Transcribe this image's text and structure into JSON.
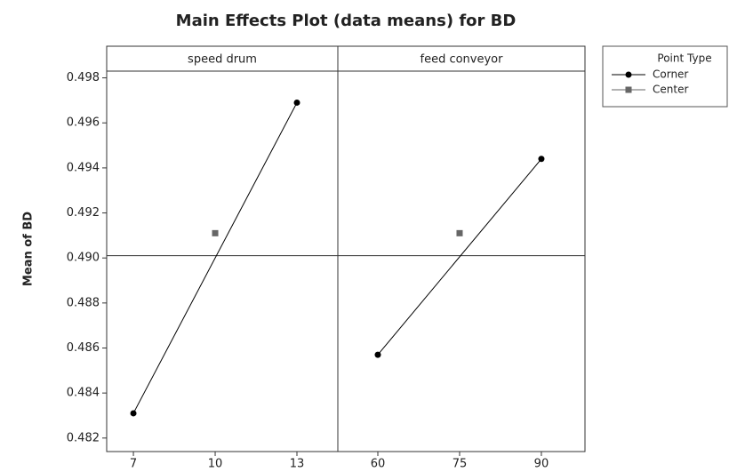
{
  "chart_data": {
    "type": "line",
    "title": "Main Effects Plot (data means) for BD",
    "ylabel": "Mean of BD",
    "ylim": [
      0.4814,
      0.4983
    ],
    "yticks": [
      0.482,
      0.484,
      0.486,
      0.488,
      {
        "value": 0.49,
        "label": "0.490"
      },
      0.492,
      0.494,
      0.496,
      0.498
    ],
    "reference_line": 0.4901,
    "legend_title": "Point Type",
    "legend_position": "upper right outside",
    "panels": [
      {
        "title": "speed drum",
        "xlim": [
          6.02,
          14.5
        ],
        "xticks": [
          7,
          10,
          13
        ],
        "series": [
          {
            "name": "Corner",
            "color": "#000000",
            "marker": "circle",
            "x": [
              7,
              13
            ],
            "values": [
              0.4831,
              0.4969
            ]
          },
          {
            "name": "Center",
            "color": "#666666",
            "marker": "square",
            "x": [
              10
            ],
            "values": [
              0.4911
            ]
          }
        ]
      },
      {
        "title": "feed conveyor",
        "xlim": [
          52.66,
          98
        ],
        "xticks": [
          60,
          75,
          90
        ],
        "series": [
          {
            "name": "Corner",
            "color": "#000000",
            "marker": "circle",
            "x": [
              60,
              90
            ],
            "values": [
              0.4857,
              0.4944
            ]
          },
          {
            "name": "Center",
            "color": "#666666",
            "marker": "square",
            "x": [
              75
            ],
            "values": [
              0.4911
            ]
          }
        ]
      }
    ]
  }
}
